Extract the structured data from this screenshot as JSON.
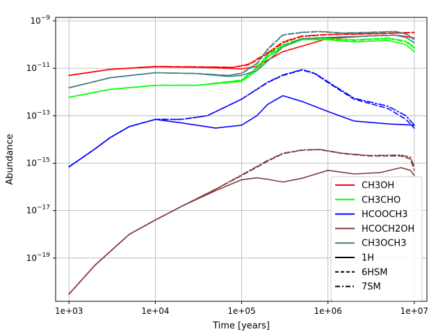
{
  "chart_data": {
    "type": "line",
    "title": "",
    "xlabel": "Time [years]",
    "ylabel": "Abundance",
    "xscale": "log",
    "yscale": "log",
    "xlim": [
      700,
      14000000
    ],
    "ylim": [
      1.5e-21,
      1.4e-09
    ],
    "grid": true,
    "legend_position": "lower-right",
    "x_ticks": [
      {
        "value": 1000,
        "label": "1e+03"
      },
      {
        "value": 10000,
        "label": "1e+04"
      },
      {
        "value": 100000,
        "label": "1e+05"
      },
      {
        "value": 1000000,
        "label": "1e+06"
      },
      {
        "value": 10000000,
        "label": "1e+07"
      }
    ],
    "y_ticks": [
      {
        "value": 1e-09,
        "base": "10",
        "exp": "−9"
      },
      {
        "value": 1e-11,
        "base": "10",
        "exp": "−11"
      },
      {
        "value": 1e-13,
        "base": "10",
        "exp": "−13"
      },
      {
        "value": 1e-15,
        "base": "10",
        "exp": "−15"
      },
      {
        "value": 1e-17,
        "base": "10",
        "exp": "−17"
      },
      {
        "value": 1e-19,
        "base": "10",
        "exp": "−19"
      }
    ],
    "species_legend": [
      {
        "name": "CH3OH",
        "color": "#ff0000"
      },
      {
        "name": "CH3CHO",
        "color": "#00ff00"
      },
      {
        "name": "HCOOCH3",
        "color": "#0000ff"
      },
      {
        "name": "HCOCH2OH",
        "color": "#7f3b3b"
      },
      {
        "name": "CH3OCH3",
        "color": "#3f7f7f"
      }
    ],
    "model_legend": [
      {
        "name": "1H",
        "dash": "solid"
      },
      {
        "name": "6HSM",
        "dash": "dashed"
      },
      {
        "name": "7SM",
        "dash": "dashdot"
      }
    ],
    "series": [
      {
        "species": "CH3OH",
        "model": "1H",
        "color": "#ff0000",
        "dash": "solid",
        "points": [
          [
            1000,
            5e-12
          ],
          [
            3000,
            9e-12
          ],
          [
            10000,
            1.15e-11
          ],
          [
            30000,
            1.1e-11
          ],
          [
            100000,
            9.5e-12
          ],
          [
            150000,
            1.2e-11
          ],
          [
            200000,
            2.2e-11
          ],
          [
            300000,
            5e-11
          ],
          [
            1000000,
            1.8e-10
          ],
          [
            3000000,
            2.3e-10
          ],
          [
            6000000,
            2.5e-10
          ],
          [
            8000000,
            2.2e-10
          ],
          [
            10000000,
            1.9e-10
          ]
        ]
      },
      {
        "species": "CH3OH",
        "model": "6HSM",
        "color": "#ff0000",
        "dash": "dashed",
        "points": [
          [
            1000,
            5e-12
          ],
          [
            3000,
            9e-12
          ],
          [
            10000,
            1.2e-11
          ],
          [
            30000,
            1.15e-11
          ],
          [
            80000,
            1.1e-11
          ],
          [
            120000,
            1.4e-11
          ],
          [
            200000,
            4e-11
          ],
          [
            300000,
            1.2e-10
          ],
          [
            500000,
            2.2e-10
          ],
          [
            1000000,
            2.6e-10
          ],
          [
            3000000,
            2.8e-10
          ],
          [
            6000000,
            3e-10
          ],
          [
            10000000,
            3.2e-10
          ]
        ]
      },
      {
        "species": "CH3OH",
        "model": "7SM",
        "color": "#ff0000",
        "dash": "dashdot",
        "points": [
          [
            1000,
            5e-12
          ],
          [
            3000,
            9e-12
          ],
          [
            10000,
            1.2e-11
          ],
          [
            30000,
            1.15e-11
          ],
          [
            80000,
            1.1e-11
          ],
          [
            120000,
            1.5e-11
          ],
          [
            200000,
            4.5e-11
          ],
          [
            300000,
            1.3e-10
          ],
          [
            500000,
            2.3e-10
          ],
          [
            1000000,
            2.7e-10
          ],
          [
            3000000,
            2.9e-10
          ],
          [
            6000000,
            3.1e-10
          ],
          [
            10000000,
            3.3e-10
          ]
        ]
      },
      {
        "species": "CH3CHO",
        "model": "1H",
        "color": "#00ff00",
        "dash": "solid",
        "points": [
          [
            1000,
            6e-13
          ],
          [
            3000,
            1.3e-12
          ],
          [
            10000,
            1.9e-12
          ],
          [
            30000,
            1.9e-12
          ],
          [
            100000,
            2.8e-12
          ],
          [
            150000,
            8e-12
          ],
          [
            200000,
            3e-11
          ],
          [
            300000,
            8e-11
          ],
          [
            500000,
            1.6e-10
          ],
          [
            1000000,
            1.6e-10
          ],
          [
            2000000,
            1.3e-10
          ],
          [
            5000000,
            1.5e-10
          ],
          [
            8000000,
            1e-10
          ],
          [
            10000000,
            5e-11
          ]
        ]
      },
      {
        "species": "CH3CHO",
        "model": "6HSM",
        "color": "#00ff00",
        "dash": "dashed",
        "points": [
          [
            1000,
            6e-13
          ],
          [
            3000,
            1.3e-12
          ],
          [
            10000,
            1.9e-12
          ],
          [
            30000,
            1.9e-12
          ],
          [
            100000,
            3e-12
          ],
          [
            150000,
            1e-11
          ],
          [
            200000,
            3.5e-11
          ],
          [
            300000,
            9e-11
          ],
          [
            500000,
            1.7e-10
          ],
          [
            1000000,
            1.7e-10
          ],
          [
            2000000,
            1.5e-10
          ],
          [
            5000000,
            1.8e-10
          ],
          [
            8000000,
            1.3e-10
          ],
          [
            10000000,
            7e-11
          ]
        ]
      },
      {
        "species": "CH3CHO",
        "model": "7SM",
        "color": "#00ff00",
        "dash": "dashdot",
        "points": [
          [
            1000,
            6e-13
          ],
          [
            3000,
            1.3e-12
          ],
          [
            10000,
            1.9e-12
          ],
          [
            30000,
            1.9e-12
          ],
          [
            100000,
            3.2e-12
          ],
          [
            150000,
            1.1e-11
          ],
          [
            200000,
            3.8e-11
          ],
          [
            300000,
            1e-10
          ],
          [
            500000,
            1.8e-10
          ],
          [
            1000000,
            1.8e-10
          ],
          [
            2000000,
            1.6e-10
          ],
          [
            5000000,
            1.9e-10
          ],
          [
            8000000,
            1.4e-10
          ],
          [
            10000000,
            8e-11
          ]
        ]
      },
      {
        "species": "HCOOCH3",
        "model": "1H",
        "color": "#0000ff",
        "dash": "solid",
        "points": [
          [
            1000,
            7e-16
          ],
          [
            2000,
            4e-15
          ],
          [
            3000,
            1.2e-14
          ],
          [
            5000,
            3.5e-14
          ],
          [
            10000,
            7e-14
          ],
          [
            20000,
            5e-14
          ],
          [
            50000,
            3e-14
          ],
          [
            100000,
            4e-14
          ],
          [
            150000,
            1e-13
          ],
          [
            200000,
            3e-13
          ],
          [
            300000,
            7e-13
          ],
          [
            500000,
            4e-13
          ],
          [
            1000000,
            1.5e-13
          ],
          [
            2000000,
            6e-14
          ],
          [
            5000000,
            4.5e-14
          ],
          [
            10000000,
            4e-14
          ]
        ]
      },
      {
        "species": "HCOOCH3",
        "model": "6HSM",
        "color": "#0000ff",
        "dash": "dashed",
        "points": [
          [
            1000,
            7e-16
          ],
          [
            2000,
            4e-15
          ],
          [
            3000,
            1.2e-14
          ],
          [
            5000,
            3.5e-14
          ],
          [
            10000,
            7e-14
          ],
          [
            20000,
            7e-14
          ],
          [
            40000,
            1e-13
          ],
          [
            100000,
            5e-13
          ],
          [
            200000,
            2.5e-12
          ],
          [
            300000,
            5e-12
          ],
          [
            500000,
            8.5e-12
          ],
          [
            700000,
            6e-12
          ],
          [
            1000000,
            2.5e-12
          ],
          [
            2000000,
            5e-13
          ],
          [
            5000000,
            2e-13
          ],
          [
            8000000,
            7e-14
          ],
          [
            10000000,
            3e-14
          ]
        ]
      },
      {
        "species": "HCOOCH3",
        "model": "7SM",
        "color": "#0000ff",
        "dash": "dashdot",
        "points": [
          [
            1000,
            7e-16
          ],
          [
            2000,
            4e-15
          ],
          [
            3000,
            1.2e-14
          ],
          [
            5000,
            3.5e-14
          ],
          [
            10000,
            7e-14
          ],
          [
            20000,
            7e-14
          ],
          [
            40000,
            1e-13
          ],
          [
            100000,
            5e-13
          ],
          [
            200000,
            2.6e-12
          ],
          [
            300000,
            5.2e-12
          ],
          [
            500000,
            8.8e-12
          ],
          [
            700000,
            6.2e-12
          ],
          [
            1000000,
            2.7e-12
          ],
          [
            2000000,
            5.5e-13
          ],
          [
            5000000,
            2.5e-13
          ],
          [
            8000000,
            1e-13
          ],
          [
            10000000,
            4e-14
          ]
        ]
      },
      {
        "species": "HCOCH2OH",
        "model": "1H",
        "color": "#7f3b3b",
        "dash": "solid",
        "points": [
          [
            1000,
            3e-21
          ],
          [
            2000,
            5e-20
          ],
          [
            5000,
            1e-18
          ],
          [
            10000,
            4e-18
          ],
          [
            20000,
            1.5e-17
          ],
          [
            50000,
            7e-17
          ],
          [
            100000,
            2e-16
          ],
          [
            150000,
            2.4e-16
          ],
          [
            200000,
            2.1e-16
          ],
          [
            300000,
            1.6e-16
          ],
          [
            500000,
            2.3e-16
          ],
          [
            1000000,
            5e-16
          ],
          [
            2000000,
            3.5e-16
          ],
          [
            4000000,
            4e-16
          ],
          [
            7000000,
            6.5e-16
          ],
          [
            9000000,
            5e-16
          ],
          [
            10000000,
            3e-16
          ]
        ]
      },
      {
        "species": "HCOCH2OH",
        "model": "6HSM",
        "color": "#7f3b3b",
        "dash": "dashed",
        "points": [
          [
            1000,
            3e-21
          ],
          [
            2000,
            5e-20
          ],
          [
            5000,
            1e-18
          ],
          [
            10000,
            4e-18
          ],
          [
            20000,
            1.5e-17
          ],
          [
            50000,
            8e-17
          ],
          [
            100000,
            3e-16
          ],
          [
            200000,
            1.2e-15
          ],
          [
            300000,
            2.5e-15
          ],
          [
            500000,
            3.5e-15
          ],
          [
            800000,
            3.7e-15
          ],
          [
            1500000,
            2.5e-15
          ],
          [
            3000000,
            2e-15
          ],
          [
            7000000,
            2e-15
          ],
          [
            9000000,
            1.5e-15
          ],
          [
            10000000,
            5e-16
          ]
        ]
      },
      {
        "species": "HCOCH2OH",
        "model": "7SM",
        "color": "#7f3b3b",
        "dash": "dashdot",
        "points": [
          [
            1000,
            3e-21
          ],
          [
            2000,
            5e-20
          ],
          [
            5000,
            1e-18
          ],
          [
            10000,
            4e-18
          ],
          [
            20000,
            1.5e-17
          ],
          [
            50000,
            8e-17
          ],
          [
            100000,
            3.2e-16
          ],
          [
            200000,
            1.3e-15
          ],
          [
            300000,
            2.6e-15
          ],
          [
            500000,
            3.6e-15
          ],
          [
            800000,
            3.8e-15
          ],
          [
            1500000,
            2.6e-15
          ],
          [
            3000000,
            2.1e-15
          ],
          [
            7000000,
            2.2e-15
          ],
          [
            9000000,
            1.8e-15
          ],
          [
            10000000,
            7e-16
          ]
        ]
      },
      {
        "species": "CH3OCH3",
        "model": "1H",
        "color": "#3f7f7f",
        "dash": "solid",
        "points": [
          [
            1000,
            1.5e-12
          ],
          [
            3000,
            4e-12
          ],
          [
            10000,
            6.5e-12
          ],
          [
            30000,
            6e-12
          ],
          [
            70000,
            4.5e-12
          ],
          [
            100000,
            5e-12
          ],
          [
            150000,
            8e-12
          ],
          [
            200000,
            2e-11
          ],
          [
            300000,
            8e-11
          ],
          [
            500000,
            1.8e-10
          ],
          [
            1000000,
            2e-10
          ],
          [
            3000000,
            2.3e-10
          ],
          [
            6000000,
            2.5e-10
          ],
          [
            8000000,
            2e-10
          ],
          [
            10000000,
            1.2e-10
          ]
        ]
      },
      {
        "species": "CH3OCH3",
        "model": "6HSM",
        "color": "#3f7f7f",
        "dash": "dashed",
        "points": [
          [
            1000,
            1.5e-12
          ],
          [
            3000,
            4e-12
          ],
          [
            10000,
            6.5e-12
          ],
          [
            30000,
            6e-12
          ],
          [
            70000,
            5e-12
          ],
          [
            100000,
            6e-12
          ],
          [
            150000,
            1.5e-11
          ],
          [
            200000,
            6e-11
          ],
          [
            300000,
            2.5e-10
          ],
          [
            500000,
            3.2e-10
          ],
          [
            800000,
            3.5e-10
          ],
          [
            1500000,
            3e-10
          ],
          [
            3000000,
            3.2e-10
          ],
          [
            6000000,
            3.5e-10
          ],
          [
            8000000,
            2.8e-10
          ],
          [
            10000000,
            1.6e-10
          ]
        ]
      },
      {
        "species": "CH3OCH3",
        "model": "7SM",
        "color": "#3f7f7f",
        "dash": "dashdot",
        "points": [
          [
            1000,
            1.5e-12
          ],
          [
            3000,
            4e-12
          ],
          [
            10000,
            6.5e-12
          ],
          [
            30000,
            6e-12
          ],
          [
            70000,
            5e-12
          ],
          [
            100000,
            6.2e-12
          ],
          [
            150000,
            1.6e-11
          ],
          [
            200000,
            6.5e-11
          ],
          [
            300000,
            2.6e-10
          ],
          [
            500000,
            3.3e-10
          ],
          [
            800000,
            3.6e-10
          ],
          [
            1500000,
            3.1e-10
          ],
          [
            3000000,
            3.3e-10
          ],
          [
            6000000,
            3.6e-10
          ],
          [
            8000000,
            2.9e-10
          ],
          [
            10000000,
            1.7e-10
          ]
        ]
      }
    ]
  }
}
